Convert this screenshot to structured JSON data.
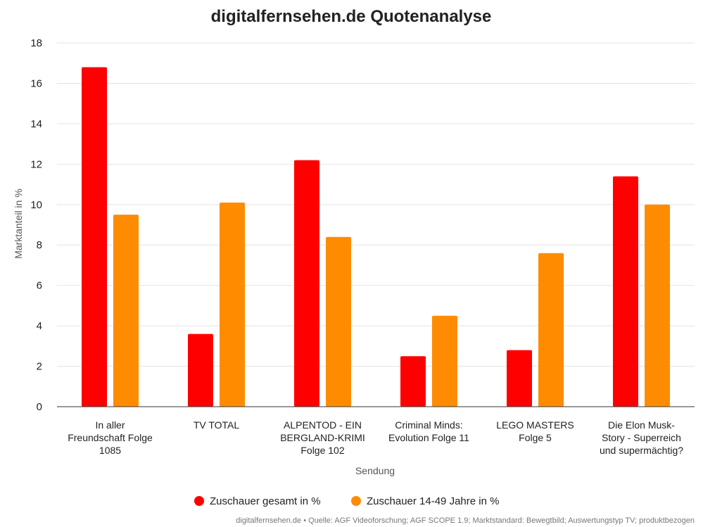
{
  "chart_data": {
    "type": "bar",
    "title": "digitalfernsehen.de Quotenanalyse",
    "xlabel": "Sendung",
    "ylabel": "Marktanteil in %",
    "ylim": [
      0,
      18
    ],
    "yticks": [
      0,
      2,
      4,
      6,
      8,
      10,
      12,
      14,
      16,
      18
    ],
    "grid": true,
    "legend_position": "bottom",
    "categories": [
      [
        "In aller",
        "Freundschaft Folge",
        "1085"
      ],
      [
        "TV TOTAL"
      ],
      [
        "ALPENTOD - EIN",
        "BERGLAND-KRIMI",
        "Folge 102"
      ],
      [
        "Criminal Minds:",
        "Evolution Folge 11"
      ],
      [
        "LEGO MASTERS",
        "Folge 5"
      ],
      [
        "Die Elon Musk-",
        "Story - Superreich",
        "und supermächtig?"
      ]
    ],
    "series": [
      {
        "name": "Zuschauer gesamt in %",
        "color": "#ff0000",
        "values": [
          16.8,
          3.6,
          12.2,
          2.5,
          2.8,
          11.4
        ]
      },
      {
        "name": "Zuschauer 14-49 Jahre in %",
        "color": "#ff8c00",
        "values": [
          9.5,
          10.1,
          8.4,
          4.5,
          7.6,
          10.0
        ]
      }
    ],
    "source": "digitalfernsehen.de • Quelle: AGF Videoforschung; AGF SCOPE 1.9; Marktstandard: Bewegtbild; Auswertungstyp TV; produktbezogen"
  }
}
